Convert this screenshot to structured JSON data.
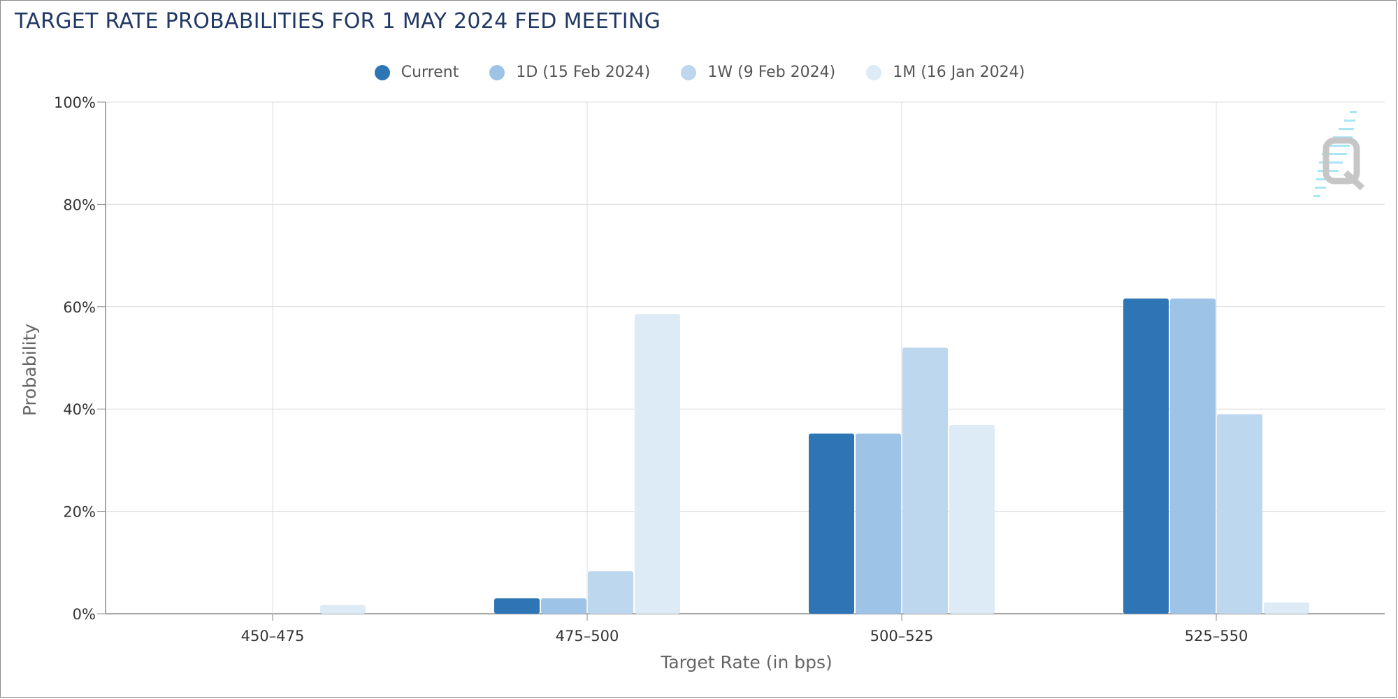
{
  "title": "TARGET RATE PROBABILITIES FOR 1 MAY 2024 FED MEETING",
  "legend": [
    {
      "label": "Current",
      "color": "#2e75b6"
    },
    {
      "label": "1D (15 Feb 2024)",
      "color": "#9dc3e6"
    },
    {
      "label": "1W (9 Feb 2024)",
      "color": "#bdd7ee"
    },
    {
      "label": "1M (16 Jan 2024)",
      "color": "#ddebf7"
    }
  ],
  "chart_data": {
    "type": "bar",
    "categories": [
      "450-475",
      "475-500",
      "500-525",
      "525-550"
    ],
    "series": [
      {
        "name": "Current",
        "values": [
          0,
          3.0,
          35.2,
          61.6
        ],
        "color": "#2e75b6"
      },
      {
        "name": "1D (15 Feb 2024)",
        "values": [
          0,
          3.0,
          35.2,
          61.6
        ],
        "color": "#9dc3e6"
      },
      {
        "name": "1W (9 Feb 2024)",
        "values": [
          0,
          8.3,
          52.0,
          39.0
        ],
        "color": "#bdd7ee"
      },
      {
        "name": "1M (16 Jan 2024)",
        "values": [
          1.7,
          58.6,
          36.9,
          2.2
        ],
        "color": "#ddebf7"
      }
    ],
    "xlabel": "Target Rate (in bps)",
    "ylabel": "Probability",
    "ylim": [
      0,
      100
    ],
    "yticks": [
      "0%",
      "20%",
      "40%",
      "60%",
      "80%",
      "100%"
    ],
    "grid": true,
    "legend_position": "top-center"
  }
}
